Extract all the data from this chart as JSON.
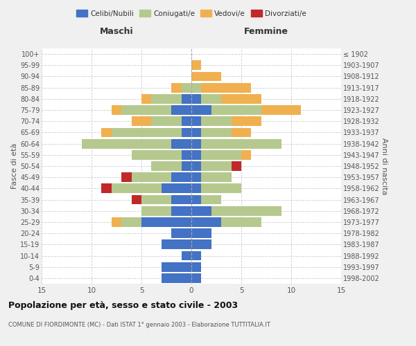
{
  "age_groups": [
    "0-4",
    "5-9",
    "10-14",
    "15-19",
    "20-24",
    "25-29",
    "30-34",
    "35-39",
    "40-44",
    "45-49",
    "50-54",
    "55-59",
    "60-64",
    "65-69",
    "70-74",
    "75-79",
    "80-84",
    "85-89",
    "90-94",
    "95-99",
    "100+"
  ],
  "birth_years": [
    "1998-2002",
    "1993-1997",
    "1988-1992",
    "1983-1987",
    "1978-1982",
    "1973-1977",
    "1968-1972",
    "1963-1967",
    "1958-1962",
    "1953-1957",
    "1948-1952",
    "1943-1947",
    "1938-1942",
    "1933-1937",
    "1928-1932",
    "1923-1927",
    "1918-1922",
    "1913-1917",
    "1908-1912",
    "1903-1907",
    "≤ 1902"
  ],
  "males": {
    "celibi": [
      3,
      3,
      1,
      3,
      2,
      5,
      2,
      2,
      3,
      2,
      1,
      1,
      2,
      1,
      1,
      2,
      1,
      0,
      0,
      0,
      0
    ],
    "coniugati": [
      0,
      0,
      0,
      0,
      0,
      2,
      3,
      3,
      5,
      4,
      3,
      5,
      9,
      7,
      3,
      5,
      3,
      1,
      0,
      0,
      0
    ],
    "vedovi": [
      0,
      0,
      0,
      0,
      0,
      1,
      0,
      0,
      0,
      0,
      0,
      0,
      0,
      1,
      2,
      1,
      1,
      1,
      0,
      0,
      0
    ],
    "divorziati": [
      0,
      0,
      0,
      0,
      0,
      0,
      0,
      1,
      1,
      1,
      0,
      0,
      0,
      0,
      0,
      0,
      0,
      0,
      0,
      0,
      0
    ]
  },
  "females": {
    "nubili": [
      1,
      1,
      1,
      2,
      2,
      3,
      2,
      1,
      1,
      1,
      1,
      1,
      1,
      1,
      1,
      2,
      1,
      0,
      0,
      0,
      0
    ],
    "coniugate": [
      0,
      0,
      0,
      0,
      0,
      4,
      7,
      2,
      4,
      3,
      3,
      4,
      8,
      3,
      3,
      5,
      2,
      1,
      0,
      0,
      0
    ],
    "vedove": [
      0,
      0,
      0,
      0,
      0,
      0,
      0,
      0,
      0,
      0,
      0,
      1,
      0,
      2,
      3,
      4,
      4,
      5,
      3,
      1,
      0
    ],
    "divorziate": [
      0,
      0,
      0,
      0,
      0,
      0,
      0,
      0,
      0,
      0,
      1,
      0,
      0,
      0,
      0,
      0,
      0,
      0,
      0,
      0,
      0
    ]
  },
  "colors": {
    "celibi": "#4472c4",
    "coniugati": "#b5c98e",
    "vedovi": "#f0b050",
    "divorziati": "#c0282a"
  },
  "xlim": 15,
  "title": "Popolazione per età, sesso e stato civile - 2003",
  "subtitle": "COMUNE DI FIORDIMONTE (MC) - Dati ISTAT 1° gennaio 2003 - Elaborazione TUTTITALIA.IT",
  "xlabel_left": "Maschi",
  "xlabel_right": "Femmine",
  "ylabel_left": "Fasce di età",
  "ylabel_right": "Anni di nascita",
  "bg_color": "#f0f0f0",
  "plot_bg_color": "#ffffff"
}
